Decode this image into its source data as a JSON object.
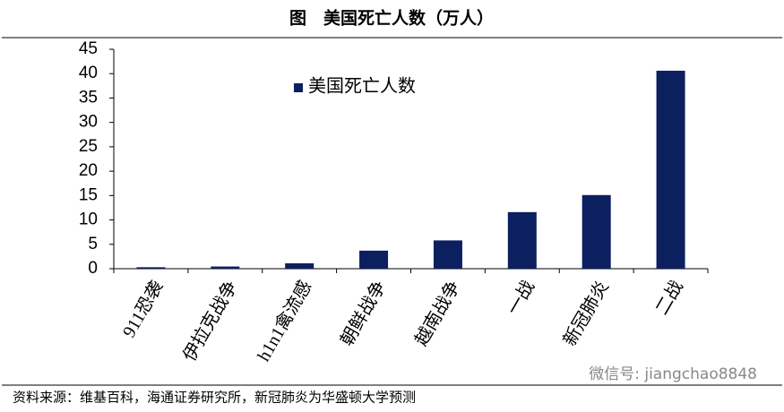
{
  "chart_data": {
    "type": "bar",
    "title": "图　美国死亡人数（万人）",
    "categories": [
      "911恐袭",
      "伊拉克战争",
      "h1n1禽流感",
      "朝鲜战争",
      "越南战争",
      "一战",
      "新冠肺炎",
      "二战"
    ],
    "series": [
      {
        "name": "美国死亡人数",
        "color": "#0c1f5f",
        "values": [
          0.3,
          0.45,
          1.1,
          3.7,
          5.8,
          11.6,
          15.1,
          40.6
        ]
      }
    ],
    "ylim": [
      0,
      45
    ],
    "yticks": [
      0,
      5,
      10,
      15,
      20,
      25,
      30,
      35,
      40,
      45
    ],
    "source": "资料来源：维基百科，海通证券研究所，新冠肺炎为华盛顿大学预测",
    "watermark": "微信号: jiangchao8848"
  }
}
